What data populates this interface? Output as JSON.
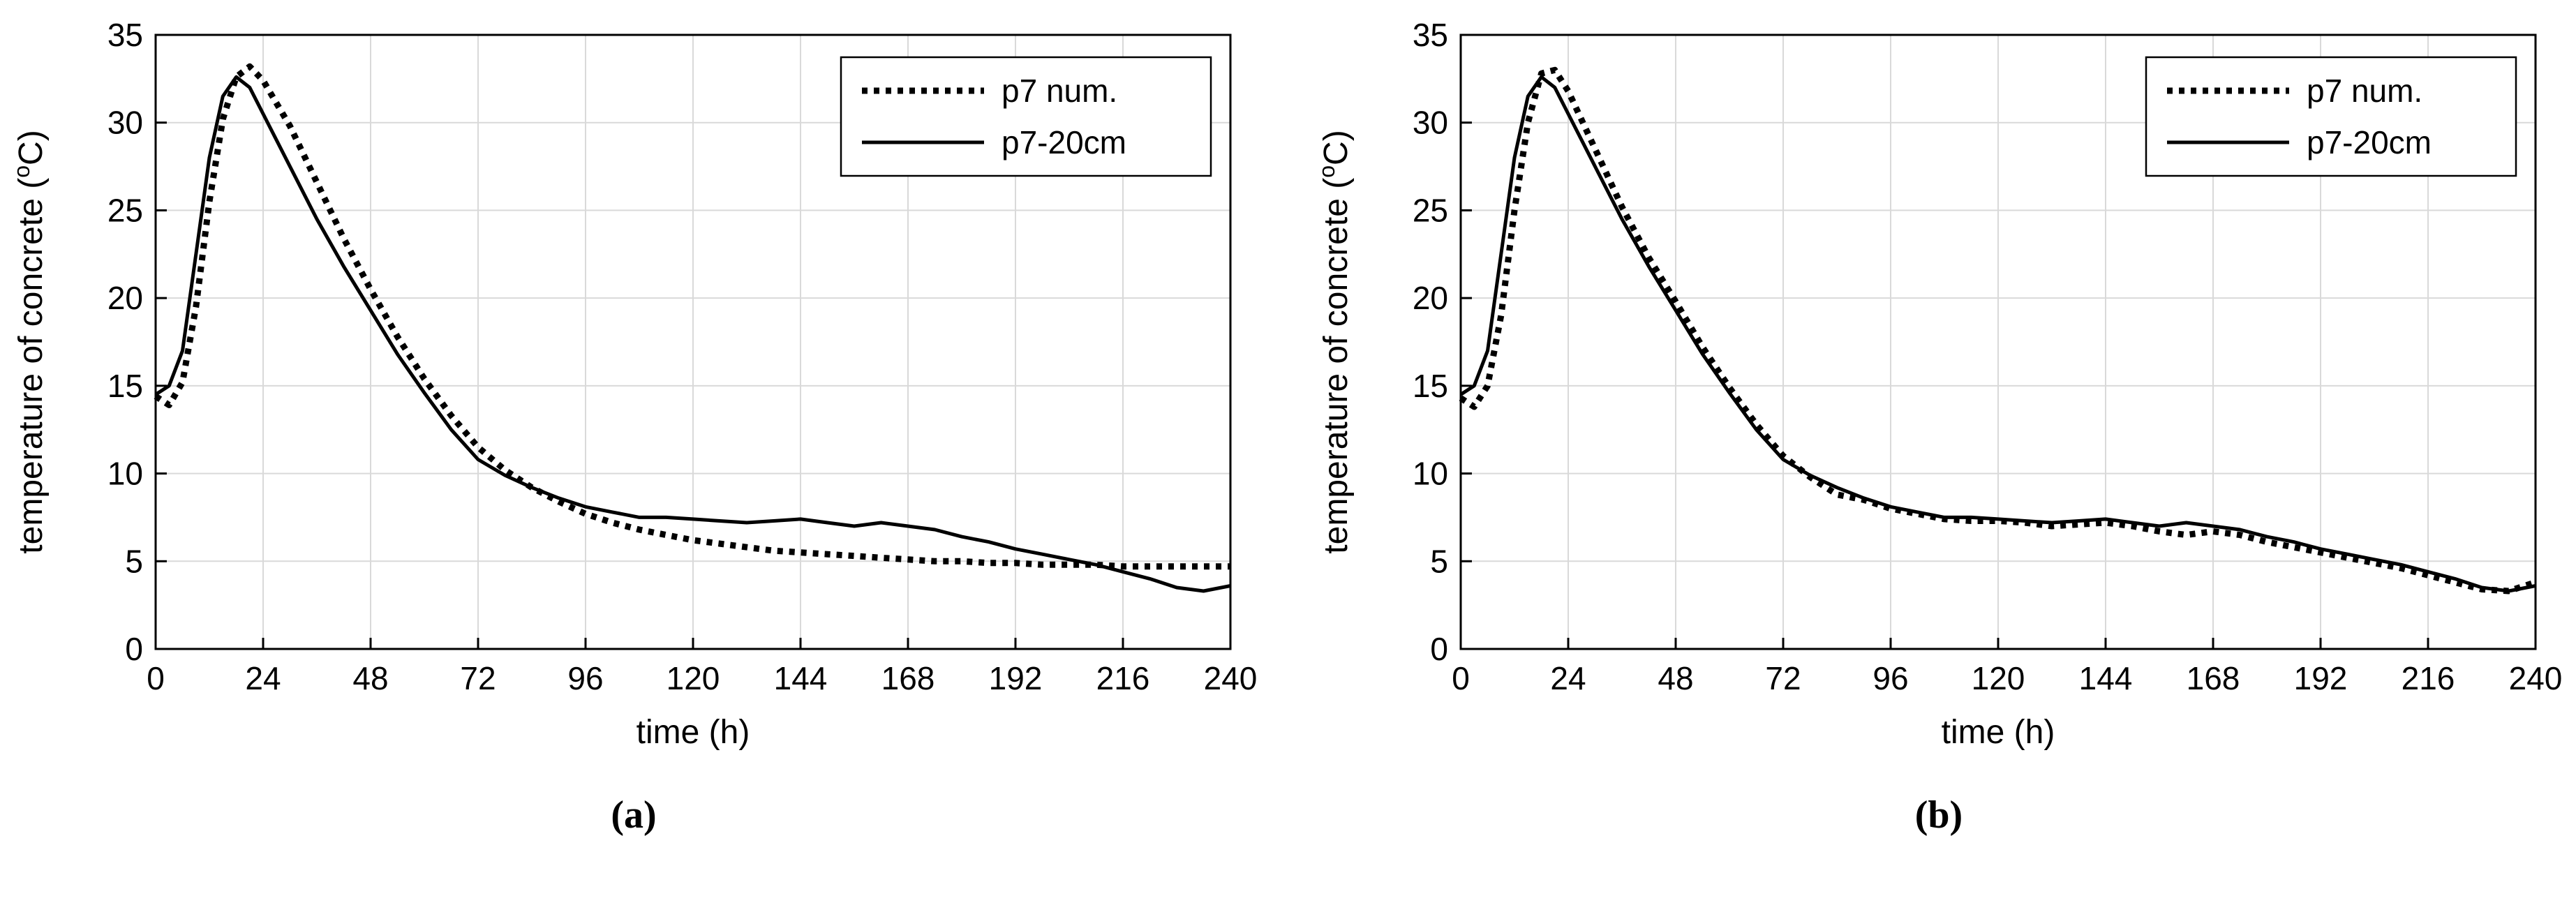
{
  "page": {
    "background": "#ffffff"
  },
  "chart_data": [
    {
      "type": "line",
      "caption": "(a)",
      "title": "",
      "xlabel": "time (h)",
      "ylabel": "temperature of concrete (°C)",
      "xlim": [
        0,
        240
      ],
      "ylim": [
        0,
        35
      ],
      "xticks": [
        0,
        24,
        48,
        72,
        96,
        120,
        144,
        168,
        192,
        216,
        240
      ],
      "yticks": [
        0,
        5,
        10,
        15,
        20,
        25,
        30,
        35
      ],
      "grid": true,
      "grid_color": "#d9d9d9",
      "axis_color": "#000000",
      "legend_position": "top-right",
      "x": [
        0,
        3,
        6,
        9,
        12,
        15,
        18,
        21,
        24,
        30,
        36,
        42,
        48,
        54,
        60,
        66,
        72,
        78,
        84,
        90,
        96,
        102,
        108,
        114,
        120,
        126,
        132,
        138,
        144,
        150,
        156,
        162,
        168,
        174,
        180,
        186,
        192,
        198,
        204,
        210,
        216,
        222,
        228,
        234,
        240
      ],
      "series": [
        {
          "name": "p7 num.",
          "line_style": "dotted",
          "color": "#000000",
          "values": [
            14.4,
            13.9,
            15.2,
            19.5,
            25.5,
            30.2,
            32.6,
            33.2,
            32.4,
            29.8,
            26.6,
            23.4,
            20.5,
            17.8,
            15.4,
            13.3,
            11.5,
            10.2,
            9.2,
            8.4,
            7.7,
            7.2,
            6.8,
            6.5,
            6.2,
            6.0,
            5.8,
            5.6,
            5.5,
            5.4,
            5.3,
            5.2,
            5.1,
            5.0,
            5.0,
            4.9,
            4.9,
            4.8,
            4.8,
            4.8,
            4.7,
            4.7,
            4.7,
            4.7,
            4.7
          ]
        },
        {
          "name": "p7-20cm",
          "line_style": "solid",
          "color": "#000000",
          "values": [
            14.5,
            15.0,
            17.0,
            22.5,
            28.0,
            31.5,
            32.6,
            32.0,
            30.5,
            27.5,
            24.5,
            21.8,
            19.3,
            16.8,
            14.6,
            12.5,
            10.8,
            9.9,
            9.2,
            8.6,
            8.1,
            7.8,
            7.5,
            7.5,
            7.4,
            7.3,
            7.2,
            7.3,
            7.4,
            7.2,
            7.0,
            7.2,
            7.0,
            6.8,
            6.4,
            6.1,
            5.7,
            5.4,
            5.1,
            4.8,
            4.4,
            4.0,
            3.5,
            3.3,
            3.6
          ]
        }
      ]
    },
    {
      "type": "line",
      "caption": "(b)",
      "title": "",
      "xlabel": "time (h)",
      "ylabel": "temperature of concrete (°C)",
      "xlim": [
        0,
        240
      ],
      "ylim": [
        0,
        35
      ],
      "xticks": [
        0,
        24,
        48,
        72,
        96,
        120,
        144,
        168,
        192,
        216,
        240
      ],
      "yticks": [
        0,
        5,
        10,
        15,
        20,
        25,
        30,
        35
      ],
      "grid": true,
      "grid_color": "#d9d9d9",
      "axis_color": "#000000",
      "legend_position": "top-right",
      "x": [
        0,
        3,
        6,
        9,
        12,
        15,
        18,
        21,
        24,
        30,
        36,
        42,
        48,
        54,
        60,
        66,
        72,
        78,
        84,
        90,
        96,
        102,
        108,
        114,
        120,
        126,
        132,
        138,
        144,
        150,
        156,
        162,
        168,
        174,
        180,
        186,
        192,
        198,
        204,
        210,
        216,
        222,
        228,
        234,
        240
      ],
      "series": [
        {
          "name": "p7 num.",
          "line_style": "dotted",
          "color": "#000000",
          "values": [
            14.3,
            13.8,
            15.0,
            19.0,
            25.0,
            30.0,
            32.8,
            33.0,
            31.8,
            28.5,
            25.2,
            22.3,
            19.8,
            17.2,
            14.9,
            12.8,
            11.0,
            9.8,
            8.8,
            8.5,
            8.0,
            7.7,
            7.4,
            7.3,
            7.3,
            7.2,
            7.0,
            7.1,
            7.2,
            7.0,
            6.7,
            6.5,
            6.7,
            6.5,
            6.1,
            5.8,
            5.5,
            5.2,
            4.9,
            4.6,
            4.2,
            3.8,
            3.4,
            3.3,
            3.8
          ]
        },
        {
          "name": "p7-20cm",
          "line_style": "solid",
          "color": "#000000",
          "values": [
            14.5,
            15.0,
            17.0,
            22.5,
            28.0,
            31.5,
            32.6,
            32.0,
            30.5,
            27.5,
            24.5,
            21.8,
            19.3,
            16.8,
            14.6,
            12.5,
            10.8,
            9.9,
            9.2,
            8.6,
            8.1,
            7.8,
            7.5,
            7.5,
            7.4,
            7.3,
            7.2,
            7.3,
            7.4,
            7.2,
            7.0,
            7.2,
            7.0,
            6.8,
            6.4,
            6.1,
            5.7,
            5.4,
            5.1,
            4.8,
            4.4,
            4.0,
            3.5,
            3.3,
            3.6
          ]
        }
      ]
    }
  ]
}
